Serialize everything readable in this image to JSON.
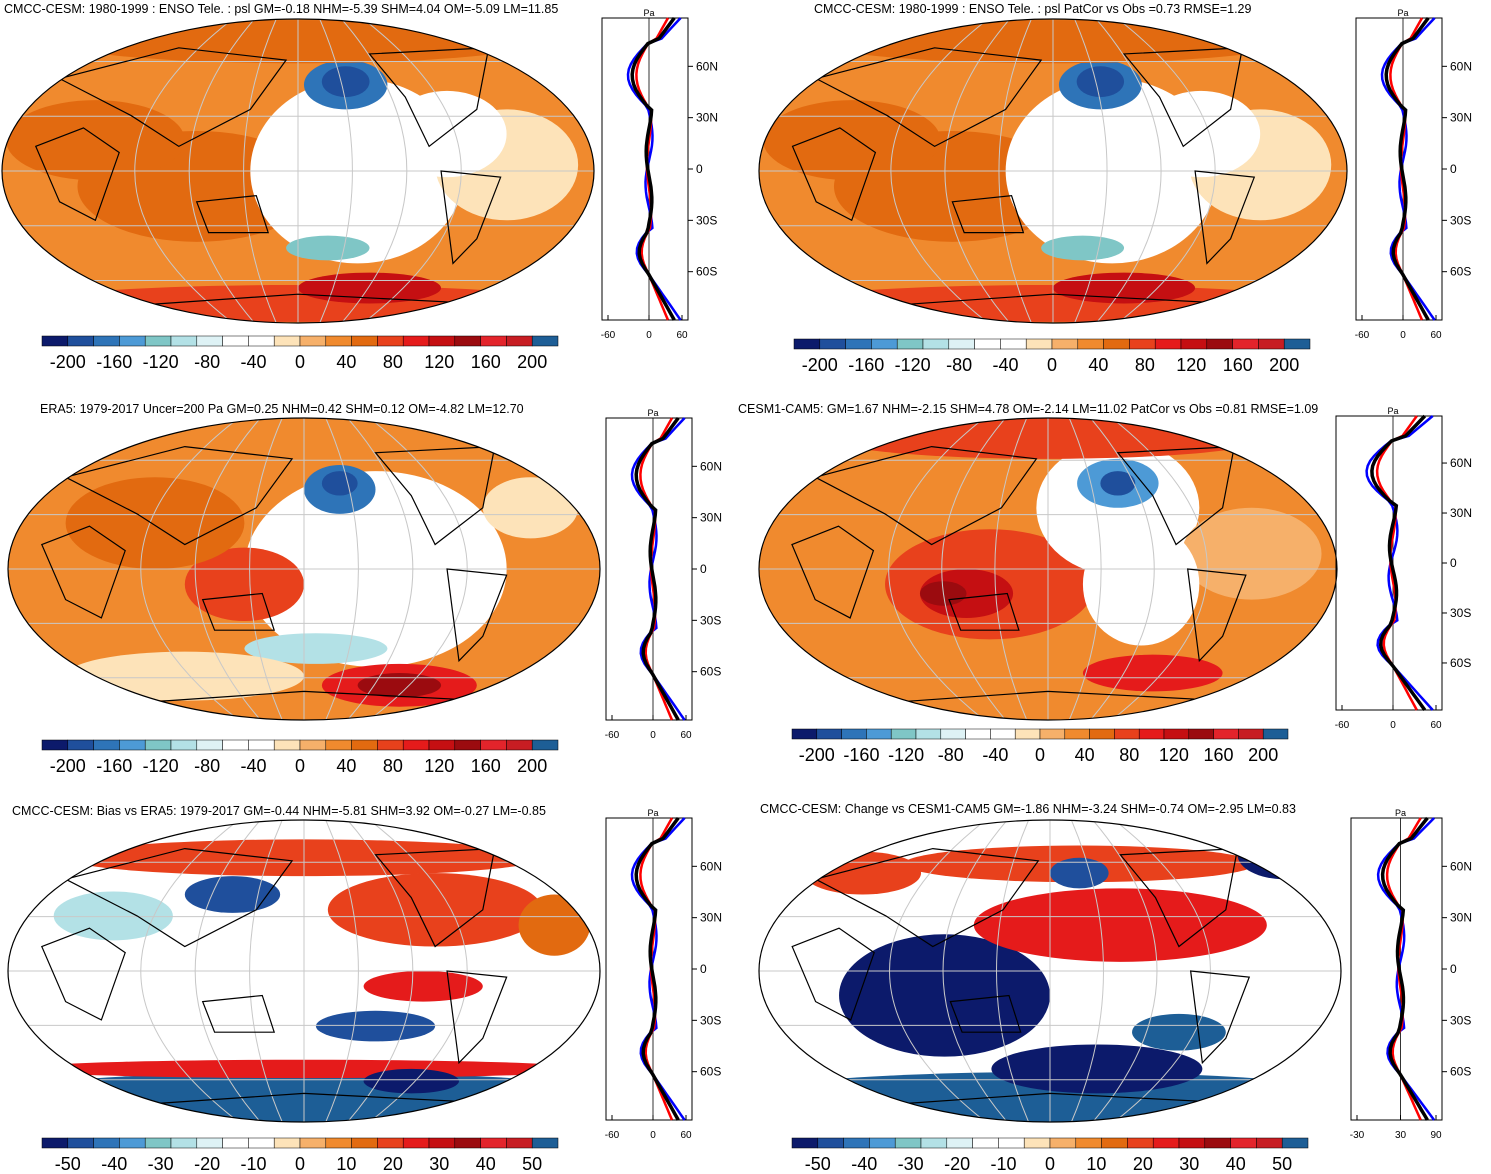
{
  "colors": {
    "diverging": [
      "#0c1a6b",
      "#1f4f9c",
      "#2e74b8",
      "#4d9ad6",
      "#7fc6c6",
      "#b3e1e6",
      "#def2f5",
      "#ffffff",
      "#ffffff",
      "#fde3b9",
      "#f6b06a",
      "#f08a2e",
      "#e26a10",
      "#e8411c",
      "#e51b1b",
      "#c50f12",
      "#9b0b0f",
      "#e3242b",
      "#c71d23",
      "#1d5e96"
    ],
    "obs": "#0000ff",
    "model": "#ff0000",
    "mmm": "#000000",
    "grid": "#c8c8c8",
    "land_outline": "#000000"
  },
  "panels": [
    {
      "title": "CMCC-CESM: 1980-1999 : ENSO Tele. : psl GM=-0.18 NHM=-5.39 SHM=4.04 OM=-5.09 LM=11.85",
      "unit": "Pa",
      "lat_labels": [
        "60N",
        "30N",
        "0",
        "30S",
        "60S"
      ],
      "x_ticks": [
        "-60",
        "0",
        "60"
      ],
      "colorbar": [
        "-200",
        "-160",
        "-120",
        "-80",
        "-40",
        "0",
        "40",
        "80",
        "120",
        "160",
        "200"
      ],
      "kind": "model"
    },
    {
      "title": "CMCC-CESM: 1980-1999 : ENSO Tele. : psl PatCor vs Obs =0.73 RMSE=1.29",
      "unit": "Pa",
      "lat_labels": [
        "60N",
        "30N",
        "0",
        "30S",
        "60S"
      ],
      "x_ticks": [
        "-60",
        "0",
        "60"
      ],
      "colorbar": [
        "-200",
        "-160",
        "-120",
        "-80",
        "-40",
        "0",
        "40",
        "80",
        "120",
        "160",
        "200"
      ],
      "kind": "model"
    },
    {
      "title": "ERA5: 1979-2017 Uncer=200 Pa GM=0.25 NHM=0.42 SHM=0.12 OM=-4.82 LM=12.70",
      "unit": "Pa",
      "lat_labels": [
        "60N",
        "30N",
        "0",
        "30S",
        "60S"
      ],
      "x_ticks": [
        "-60",
        "0",
        "60"
      ],
      "colorbar": [
        "-200",
        "-160",
        "-120",
        "-80",
        "-40",
        "0",
        "40",
        "80",
        "120",
        "160",
        "200"
      ],
      "kind": "obs"
    },
    {
      "title": "CESM1-CAM5: GM=1.67 NHM=-2.15 SHM=4.78 OM=-2.14 LM=11.02 PatCor vs Obs =0.81 RMSE=1.09",
      "unit": "Pa",
      "lat_labels": [
        "60N",
        "30N",
        "0",
        "30S",
        "60S"
      ],
      "x_ticks": [
        "-60",
        "0",
        "60"
      ],
      "colorbar": [
        "-200",
        "-160",
        "-120",
        "-80",
        "-40",
        "0",
        "40",
        "80",
        "120",
        "160",
        "200"
      ],
      "kind": "cesm"
    },
    {
      "title": "CMCC-CESM: Bias vs ERA5: 1979-2017 GM=-0.44 NHM=-5.81 SHM=3.92 OM=-0.27 LM=-0.85",
      "unit": "Pa",
      "lat_labels": [
        "60N",
        "30N",
        "0",
        "30S",
        "60S"
      ],
      "x_ticks": [
        "-60",
        "0",
        "60"
      ],
      "colorbar": [
        "-50",
        "-40",
        "-30",
        "-20",
        "-10",
        "0",
        "10",
        "20",
        "30",
        "40",
        "50"
      ],
      "kind": "bias"
    },
    {
      "title": "CMCC-CESM: Change vs CESM1-CAM5 GM=-1.86 NHM=-3.24 SHM=-0.74 OM=-2.95 LM=0.83",
      "unit": "Pa",
      "lat_labels": [
        "60N",
        "30N",
        "0",
        "30S",
        "60S"
      ],
      "x_ticks": [
        "-30",
        "30",
        "90"
      ],
      "colorbar": [
        "-50",
        "-40",
        "-30",
        "-20",
        "-10",
        "0",
        "10",
        "20",
        "30",
        "40",
        "50"
      ],
      "kind": "change"
    }
  ]
}
